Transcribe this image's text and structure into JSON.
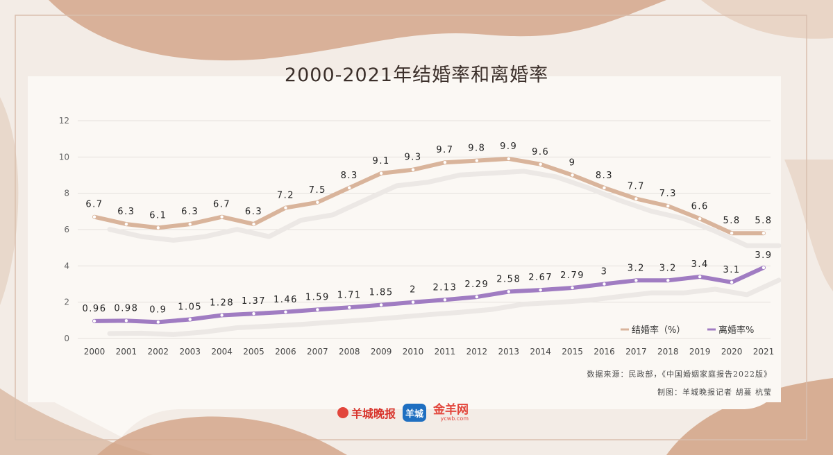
{
  "title": "2000-2021年结婚率和离婚率",
  "chart_data": {
    "type": "line",
    "title": "2000-2021年结婚率和离婚率",
    "x": [
      "2000",
      "2001",
      "2002",
      "2003",
      "2004",
      "2005",
      "2006",
      "2007",
      "2008",
      "2009",
      "2010",
      "2011",
      "2012",
      "2013",
      "2014",
      "2015",
      "2016",
      "2017",
      "2018",
      "2019",
      "2020",
      "2021"
    ],
    "ylim": [
      0,
      12
    ],
    "yticks": [
      0,
      2,
      4,
      6,
      8,
      10,
      12
    ],
    "grid": true,
    "legend_position": "bottom-right",
    "series": [
      {
        "name": "结婚率（%）",
        "color": "#d9b49b",
        "values": [
          6.7,
          6.3,
          6.1,
          6.3,
          6.7,
          6.3,
          7.2,
          7.5,
          8.3,
          9.1,
          9.3,
          9.7,
          9.8,
          9.9,
          9.6,
          9,
          8.3,
          7.7,
          7.3,
          6.6,
          5.8,
          5.8
        ],
        "labels": [
          "6.7",
          "6.3",
          "6.1",
          "6.3",
          "6.7",
          "6.3",
          "7.2",
          "7.5",
          "8.3",
          "9.1",
          "9.3",
          "9.7",
          "9.8",
          "9.9",
          "9.6",
          "9",
          "8.3",
          "7.7",
          "7.3",
          "6.6",
          "5.8",
          "5.8"
        ]
      },
      {
        "name": "离婚率%",
        "color": "#a07cc2",
        "values": [
          0.96,
          0.98,
          0.9,
          1.05,
          1.28,
          1.37,
          1.46,
          1.59,
          1.71,
          1.85,
          2,
          2.13,
          2.29,
          2.58,
          2.67,
          2.79,
          3,
          3.2,
          3.2,
          3.4,
          3.1,
          3.9
        ],
        "labels": [
          "0.96",
          "0.98",
          "0.9",
          "1.05",
          "1.28",
          "1.37",
          "1.46",
          "1.59",
          "1.71",
          "1.85",
          "2",
          "2.13",
          "2.29",
          "2.58",
          "2.67",
          "2.79",
          "3",
          "3.2",
          "3.2",
          "3.4",
          "3.1",
          "3.9"
        ]
      }
    ]
  },
  "source_text": "数据来源：民政部，《中国婚姻家庭报告2022版》",
  "credit_text": "制图：羊城晚报记者 胡蔓 杭莹",
  "logos": {
    "logo1": "羊城晚报",
    "logo2": "羊城",
    "logo3": "金羊网",
    "logo3_sub": "ycwb.com"
  },
  "colors": {
    "background": "#f6efe9",
    "card": "#fbf8f4",
    "accent_shape": "#d4a78b",
    "grid": "#e4e0dc"
  }
}
